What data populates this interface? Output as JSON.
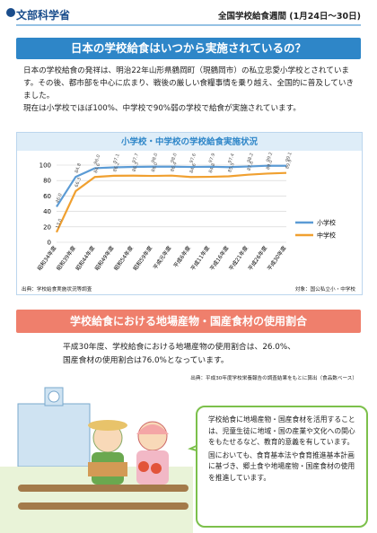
{
  "header": {
    "logo": "文部科学省",
    "title": "全国学校給食週間 (1月24日～30日)"
  },
  "section1": {
    "heading": "日本の学校給食はいつから実施されているの？",
    "paragraphs": [
      "日本の学校給食の発祥は、明治22年山形県鶴岡町（現鶴岡市）の私立忠愛小学校とされています。その後、都市部を中心に広まり、戦後の厳しい食糧事情を乗り越え、全国的に普及していきました。",
      "現在は小学校でほぼ100%、中学校で90%弱の学校で給食が実施されています。"
    ],
    "source": "出典：学校給食実施状況等調査",
    "target": "対象：国公私立小・中学校"
  },
  "chart_data": {
    "type": "line",
    "title": "小学校・中学校の学校給食実施状況",
    "categories": [
      "昭和34年度",
      "昭和39年度",
      "昭和44年度",
      "昭和49年度",
      "昭和54年度",
      "昭和59年度",
      "平成元年度",
      "平成6年度",
      "平成11年度",
      "平成16年度",
      "平成21年度",
      "平成26年度",
      "平成30年度"
    ],
    "series": [
      {
        "name": "小学校",
        "color": "#5b9bd5",
        "values": [
          46.0,
          84.8,
          96.0,
          97.1,
          97.7,
          98.0,
          98.0,
          97.6,
          97.9,
          97.4,
          98.2,
          99.2,
          99.1
        ],
        "value_labels": [
          "46.0",
          "84.8",
          "96.0",
          "97.1",
          "97.7",
          "98.0",
          "98.0",
          "97.6",
          "97.9",
          "97.4",
          "98.2",
          "99.2",
          "99.1"
        ]
      },
      {
        "name": "中学校",
        "color": "#f0a030",
        "values": [
          13.0,
          66.3,
          84.6,
          86.2,
          86.3,
          86.0,
          86.4,
          84.6,
          84.8,
          85.5,
          87.6,
          89.0,
          89.9
        ],
        "value_labels": [
          "13.0",
          "66.3",
          "84.6",
          "86.2",
          "86.3",
          "86.0",
          "86.4",
          "84.6",
          "84.8",
          "85.5",
          "87.6",
          "89.0",
          "89.9"
        ]
      }
    ],
    "ylim": [
      0,
      100
    ],
    "yticks": [
      0,
      20,
      40,
      60,
      80,
      100
    ],
    "grid": true,
    "legend": "right"
  },
  "section2": {
    "heading": "学校給食における地場産物・国産食材の使用割合",
    "paragraphs": [
      "平成30年度、学校給食における地場産物の使用割合は、26.0%、",
      "国産食材の使用割合は76.0%となっています。"
    ],
    "source": "出典：平成30年度学校栄養報告の調査結果をもとに算出（食品数ベース）"
  },
  "bubble": {
    "paragraphs": [
      "学校給食に地場産物・国産食材を活用することは、児童生徒に地域・国の産業や文化への関心をもたせるなど、教育的意義を有しています。",
      "国においても、食育基本法や食育推進基本計画に基づき、郷土食や地場産物・国産食材の使用を推進しています。"
    ]
  }
}
